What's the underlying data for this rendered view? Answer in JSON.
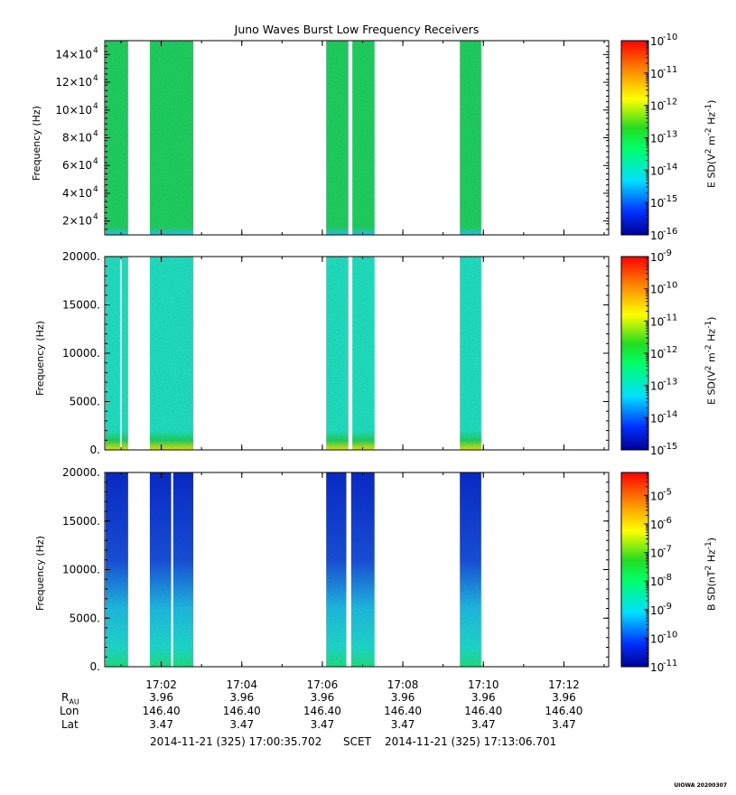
{
  "title": "Juno Waves Burst Low Frequency Receivers",
  "chart_data": [
    {
      "type": "heatmap",
      "panel": "top",
      "ylabel": "Frequency (Hz)",
      "zlabel": "E SD(V² m⁻² Hz⁻¹)",
      "yticks": [
        {
          "v": 20000,
          "m": "2",
          "e": "4"
        },
        {
          "v": 40000,
          "m": "4",
          "e": "4"
        },
        {
          "v": 60000,
          "m": "6",
          "e": "4"
        },
        {
          "v": 80000,
          "m": "8",
          "e": "4"
        },
        {
          "v": 100000,
          "m": "10",
          "e": "4"
        },
        {
          "v": 120000,
          "m": "12",
          "e": "4"
        },
        {
          "v": 140000,
          "m": "14",
          "e": "4"
        }
      ],
      "ylim": [
        10000,
        150000
      ],
      "zticks": [
        "-10",
        "-11",
        "-12",
        "-13",
        "-14",
        "-15",
        "-16"
      ],
      "zlim": [
        -16,
        -10
      ],
      "colors": {
        "base": "#22dd66",
        "low": "#33ccff"
      },
      "data_intervals_min": [
        [
          0.02,
          0.58
        ],
        [
          1.12,
          2.2
        ],
        [
          5.5,
          6.05
        ],
        [
          6.15,
          6.7
        ],
        [
          8.82,
          9.35
        ]
      ]
    },
    {
      "type": "heatmap",
      "panel": "middle",
      "ylabel": "Frequency (Hz)",
      "zlabel": "E SD(V² m⁻² Hz⁻¹)",
      "yticks": [
        {
          "v": 0,
          "m": "0."
        },
        {
          "v": 5000,
          "m": "5000."
        },
        {
          "v": 10000,
          "m": "10000."
        },
        {
          "v": 15000,
          "m": "15000."
        },
        {
          "v": 20000,
          "m": "20000."
        }
      ],
      "ylim": [
        0,
        20000
      ],
      "zticks": [
        "-9",
        "-10",
        "-11",
        "-12",
        "-13",
        "-14",
        "-15"
      ],
      "zlim": [
        -15,
        -9
      ],
      "colors": {
        "base": "#22eecc",
        "low": "#ffee00"
      },
      "data_intervals_min": [
        [
          0.02,
          0.38
        ],
        [
          0.42,
          0.58
        ],
        [
          1.12,
          2.2
        ],
        [
          5.5,
          6.05
        ],
        [
          6.15,
          6.7
        ],
        [
          8.82,
          9.35
        ]
      ]
    },
    {
      "type": "heatmap",
      "panel": "bottom",
      "ylabel": "Frequency (Hz)",
      "zlabel": "B SD(nT² Hz⁻¹)",
      "yticks": [
        {
          "v": 0,
          "m": "0."
        },
        {
          "v": 5000,
          "m": "5000."
        },
        {
          "v": 10000,
          "m": "10000."
        },
        {
          "v": 15000,
          "m": "15000."
        },
        {
          "v": 20000,
          "m": "20000."
        }
      ],
      "ylim": [
        0,
        20000
      ],
      "zticks": [
        "-5",
        "-6",
        "-7",
        "-8",
        "-9",
        "-10",
        "-11"
      ],
      "zlim": [
        -11,
        -4.2
      ],
      "colors": {
        "base": "#0a2ed8",
        "low": "#22ee88"
      },
      "data_intervals_min": [
        [
          0.02,
          0.58
        ],
        [
          1.12,
          1.65
        ],
        [
          1.7,
          2.2
        ],
        [
          5.5,
          6.0
        ],
        [
          6.12,
          6.7
        ],
        [
          8.82,
          9.35
        ]
      ]
    }
  ],
  "xaxis": {
    "start_min": 0.596,
    "end_min": 13.112,
    "ticks": [
      {
        "min": 2,
        "label": "17:02"
      },
      {
        "min": 4,
        "label": "17:04"
      },
      {
        "min": 6,
        "label": "17:06"
      },
      {
        "min": 8,
        "label": "17:08"
      },
      {
        "min": 10,
        "label": "17:10"
      },
      {
        "min": 12,
        "label": "17:12"
      }
    ]
  },
  "ephemeris": {
    "labels": {
      "r": "R",
      "r_sub": "AU",
      "lon": "Lon",
      "lat": "Lat"
    },
    "r": [
      "3.96",
      "3.96",
      "3.96",
      "3.96",
      "3.96",
      "3.96"
    ],
    "lon": [
      "146.40",
      "146.40",
      "146.40",
      "146.40",
      "146.40",
      "146.40"
    ],
    "lat": [
      "3.47",
      "3.47",
      "3.47",
      "3.47",
      "3.47",
      "3.47"
    ]
  },
  "footer": {
    "start": "2014-11-21 (325) 17:00:35.702",
    "frame": "SCET",
    "end": "2014-11-21 (325) 17:13:06.701"
  },
  "stamp": "UIOWA 20200307"
}
